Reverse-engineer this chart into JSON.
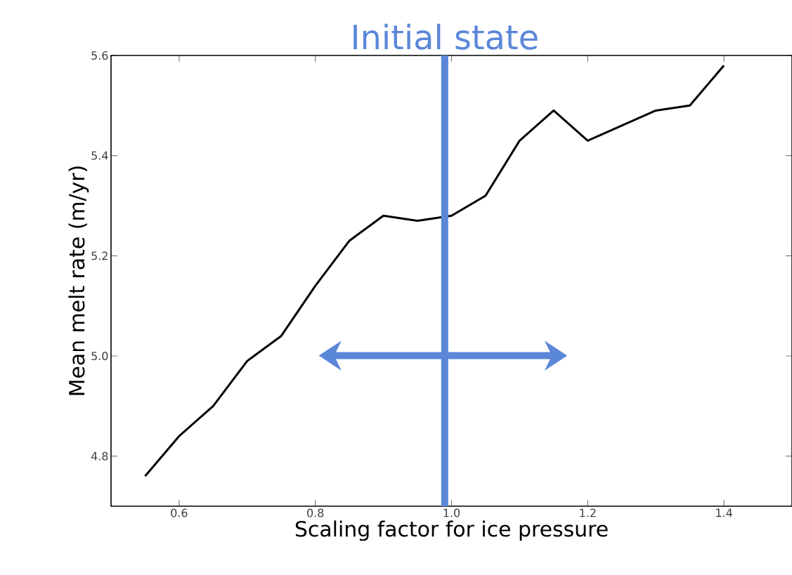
{
  "chart_data": {
    "type": "line",
    "xlabel": "Scaling factor for ice pressure",
    "ylabel": "Mean melt rate (m/yr)",
    "x": [
      0.55,
      0.6,
      0.65,
      0.7,
      0.75,
      0.8,
      0.85,
      0.9,
      0.95,
      1.0,
      1.05,
      1.1,
      1.15,
      1.2,
      1.25,
      1.3,
      1.35,
      1.4
    ],
    "series": [
      {
        "color": "#000000",
        "values": [
          4.76,
          4.84,
          4.9,
          4.99,
          5.04,
          5.14,
          5.23,
          5.28,
          5.27,
          5.28,
          5.32,
          5.43,
          5.49,
          5.43,
          5.46,
          5.49,
          5.5,
          5.58
        ]
      }
    ],
    "xlim": [
      0.5,
      1.5
    ],
    "ylim": [
      4.7,
      5.6
    ],
    "xticks": [
      0.6,
      0.8,
      {
        "value": 1.0,
        "label": "1.0"
      },
      1.2,
      1.4
    ],
    "yticks": [
      4.8,
      {
        "value": 5.0,
        "label": "5.0"
      },
      5.2,
      5.4,
      5.6
    ],
    "ref_lines": [
      {
        "axis": "x",
        "value": 0.99,
        "label": "Initial state",
        "color": "#5b87d9"
      }
    ]
  }
}
